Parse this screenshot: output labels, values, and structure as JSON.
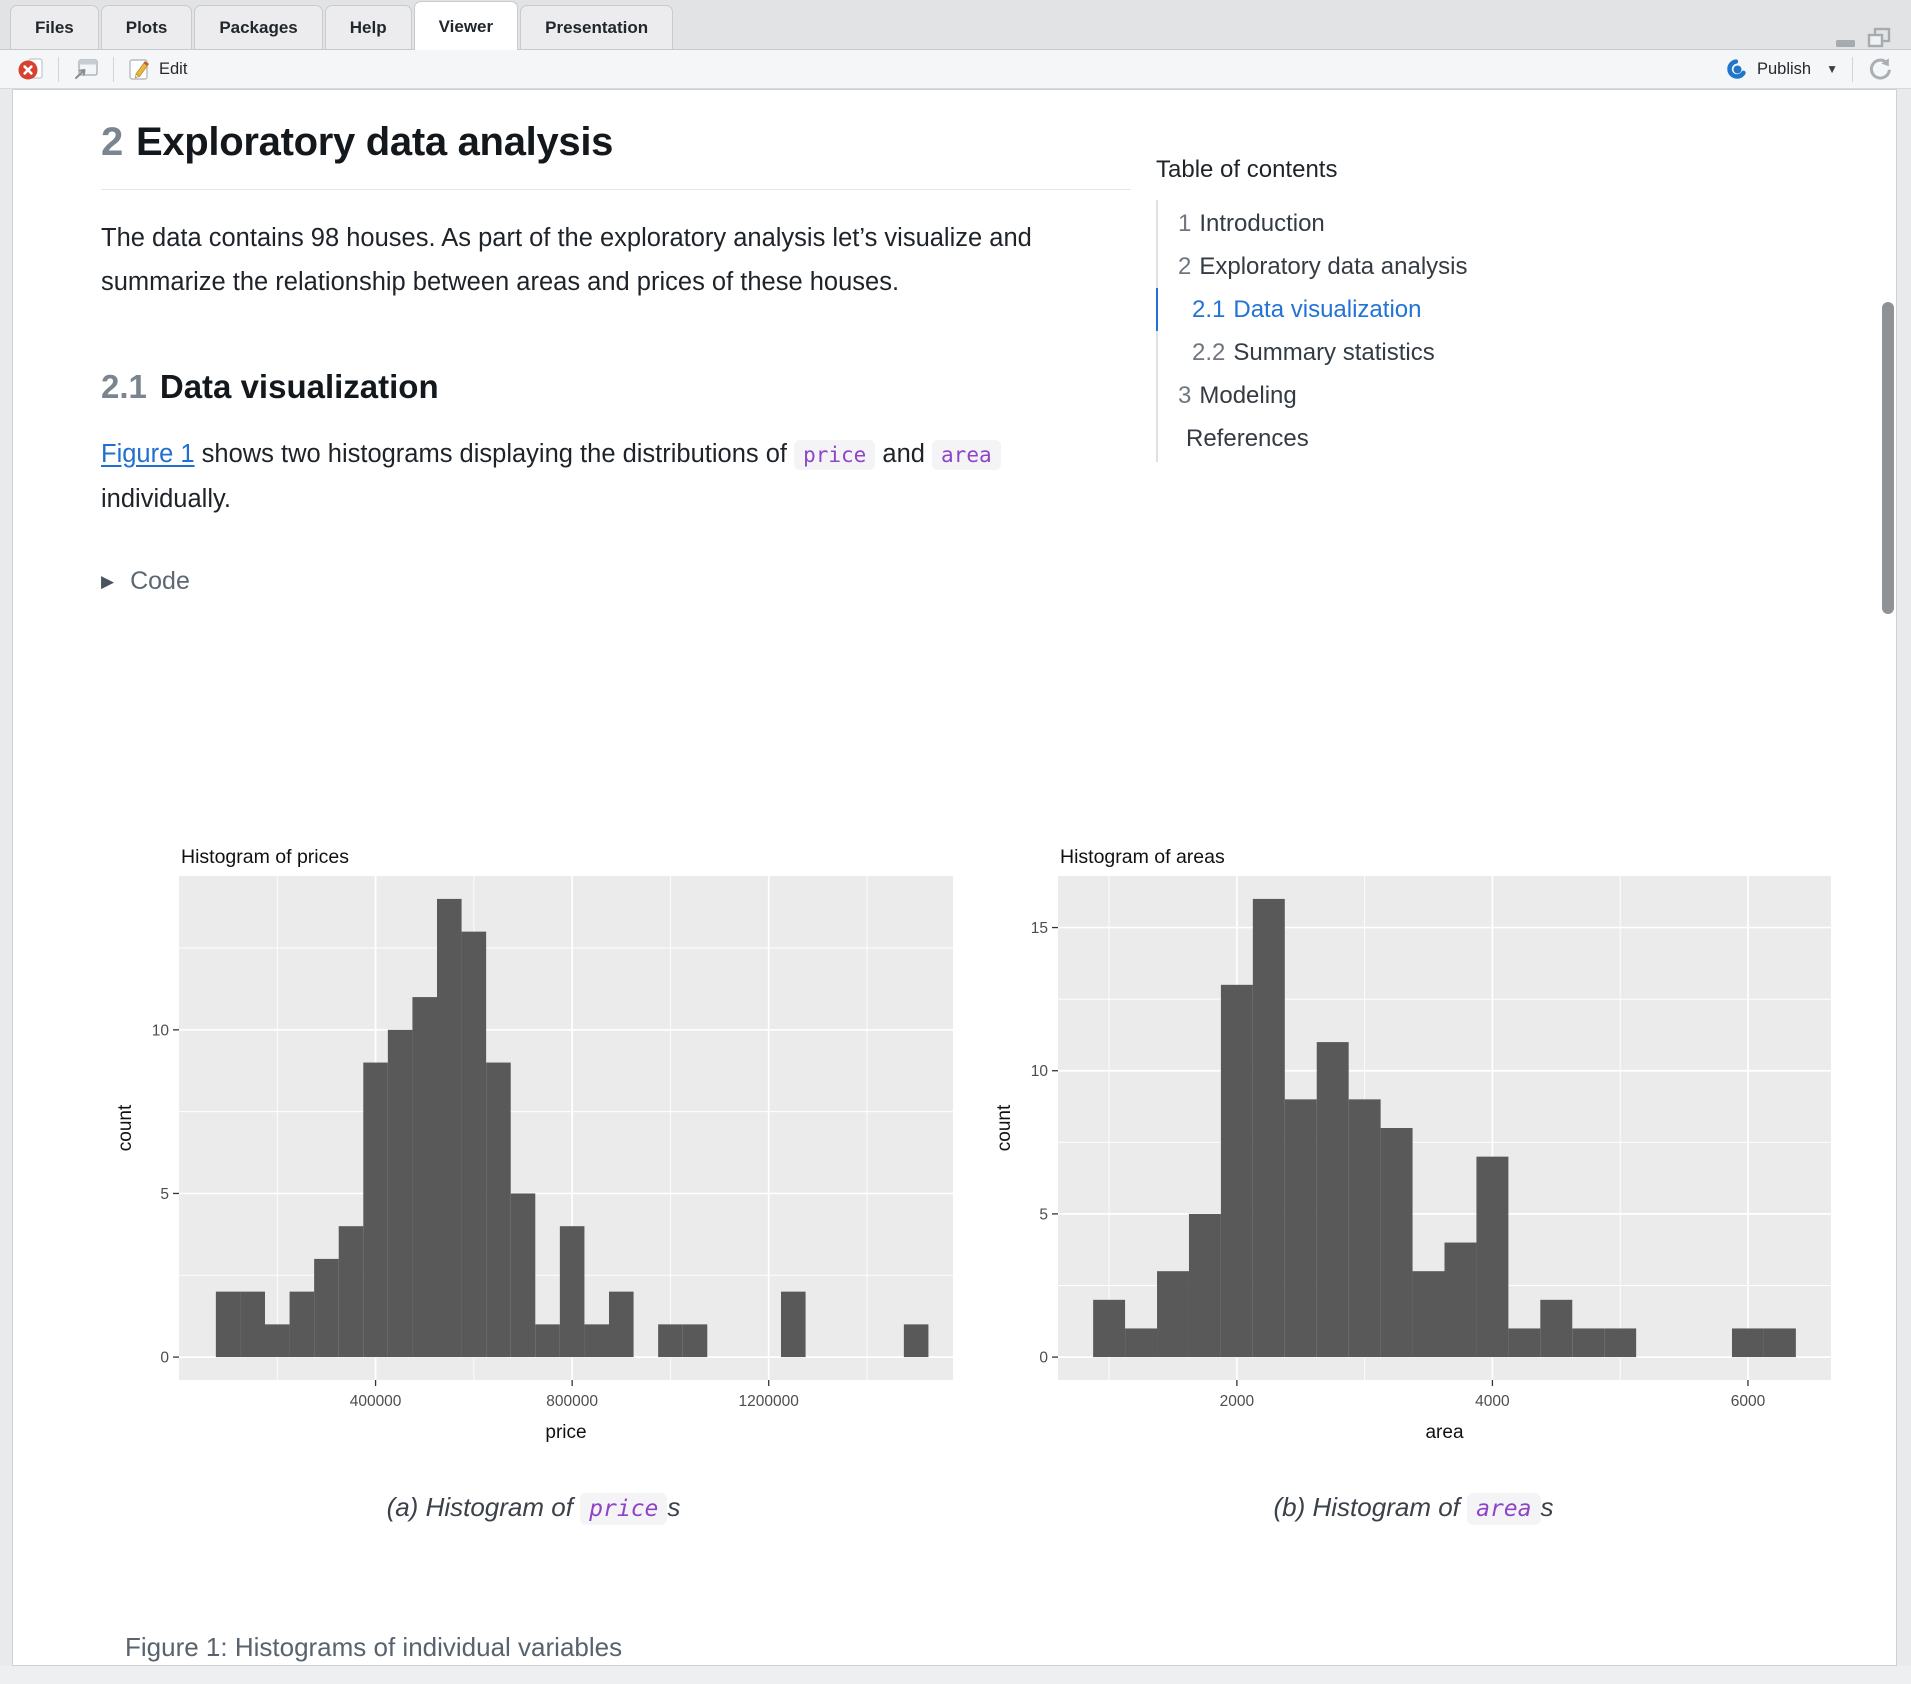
{
  "window": {
    "tabs": [
      "Files",
      "Plots",
      "Packages",
      "Help",
      "Viewer",
      "Presentation"
    ],
    "active_tab": "Viewer",
    "toolbar": {
      "edit_label": "Edit",
      "publish_label": "Publish"
    }
  },
  "document": {
    "h1": {
      "number": "2",
      "title": "Exploratory data analysis"
    },
    "intro": "The data contains 98 houses. As part of the exploratory analysis let’s visualize and summarize the relationship between areas and prices of these houses.",
    "h2": {
      "number": "2.1",
      "title": "Data visualization"
    },
    "para2": {
      "link": "Figure 1",
      "t1": " shows two histograms displaying the distributions of ",
      "code1": "price",
      "t2": " and ",
      "code2": "area",
      "t3": " individually."
    },
    "code_toggle": "Code",
    "caption_a": {
      "prefix": "(a) Histogram of ",
      "code": "price",
      "suffix": "s"
    },
    "caption_b": {
      "prefix": "(b) Histogram of ",
      "code": "area",
      "suffix": "s"
    },
    "figure_caption": "Figure 1: Histograms of individual variables"
  },
  "toc": {
    "title": "Table of contents",
    "items": [
      {
        "number": "1",
        "label": "Introduction",
        "level": 1,
        "active": false
      },
      {
        "number": "2",
        "label": "Exploratory data analysis",
        "level": 1,
        "active": false
      },
      {
        "number": "2.1",
        "label": "Data visualization",
        "level": 2,
        "active": true
      },
      {
        "number": "2.2",
        "label": "Summary statistics",
        "level": 2,
        "active": false
      },
      {
        "number": "3",
        "label": "Modeling",
        "level": 1,
        "active": false
      },
      {
        "number": "",
        "label": "References",
        "level": 1,
        "active": false
      }
    ]
  },
  "chart_data": [
    {
      "type": "bar",
      "variant": "histogram",
      "title": "Histogram of prices",
      "xlabel": "price",
      "ylabel": "count",
      "bin_start": 75000,
      "bin_width": 50000,
      "counts": [
        2,
        2,
        1,
        2,
        3,
        4,
        9,
        10,
        11,
        14,
        13,
        9,
        5,
        1,
        4,
        1,
        2,
        0,
        1,
        1,
        0,
        0,
        0,
        2,
        0,
        0,
        0,
        0,
        1
      ],
      "total_count": 98,
      "xlim": [
        0,
        1575000
      ],
      "ylim": [
        -0.7,
        14.7
      ],
      "x_ticks": [
        400000,
        800000,
        1200000
      ],
      "x_tick_labels": [
        "400000",
        "800000",
        "1200000"
      ],
      "y_ticks": [
        0,
        5,
        10
      ],
      "x_minor": [
        200000,
        600000,
        1000000,
        1400000
      ],
      "y_minor": [
        2.5,
        7.5,
        12.5
      ],
      "grid": "on",
      "legend": "none"
    },
    {
      "type": "bar",
      "variant": "histogram",
      "title": "Histogram of areas",
      "xlabel": "area",
      "ylabel": "count",
      "bin_start": 875,
      "bin_width": 250,
      "counts": [
        2,
        1,
        3,
        5,
        13,
        16,
        9,
        11,
        9,
        8,
        3,
        4,
        7,
        1,
        2,
        1,
        1,
        0,
        0,
        0,
        1,
        1
      ],
      "total_count": 98,
      "xlim": [
        600,
        6650
      ],
      "ylim": [
        -0.8,
        16.8
      ],
      "x_ticks": [
        2000,
        4000,
        6000
      ],
      "x_tick_labels": [
        "2000",
        "4000",
        "6000"
      ],
      "y_ticks": [
        0,
        5,
        10,
        15
      ],
      "x_minor": [
        1000,
        3000,
        5000
      ],
      "y_minor": [
        2.5,
        7.5,
        12.5
      ],
      "grid": "on",
      "legend": "none"
    }
  ],
  "colors": {
    "bar_fill": "#595959",
    "panel_bg": "#ebebeb",
    "grid_line": "#ffffff",
    "tick_mark": "#333333",
    "tick_label": "#4d4d4d",
    "axis_title": "#111111",
    "link_blue": "#2170cf",
    "toc_active_blue": "#2273d4",
    "code_purple": "#8e44c7",
    "code_bg": "#f4f4f6",
    "publish_blue": "#2076c8",
    "stop_red": "#d8402f"
  }
}
